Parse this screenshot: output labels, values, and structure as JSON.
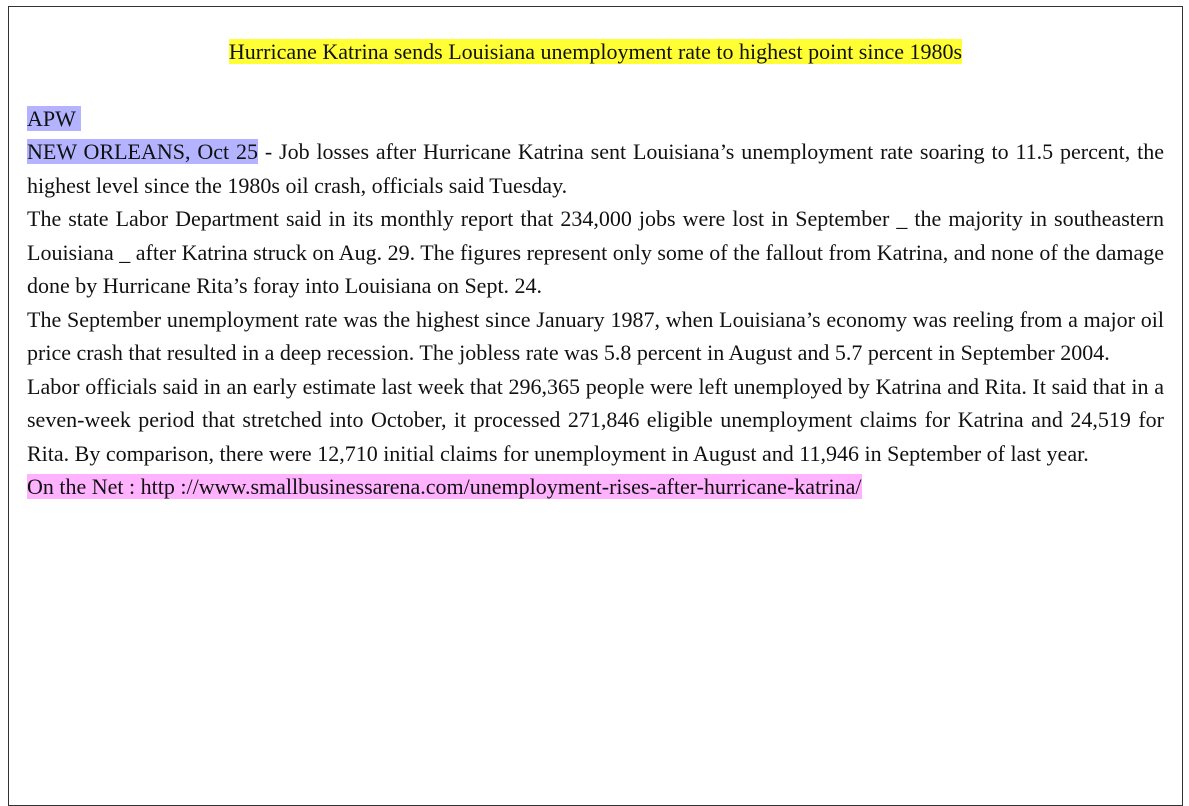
{
  "title": "Hurricane Katrina sends Louisiana unemployment rate to highest point since 1980s",
  "source": "APW",
  "dateline": "NEW ORLEANS, Oct 25",
  "lead": " - Job losses after Hurricane Katrina sent Louisiana’s unemployment rate soaring to 11.5 percent, the highest level since the 1980s oil crash, officials said Tuesday.",
  "paragraphs": [
    "The state Labor Department said in its monthly report that 234,000 jobs were lost in September _ the majority in southeastern Louisiana _ after Katrina struck on Aug. 29. The figures represent only some of the fallout from Katrina, and none of the damage done by Hurricane Rita’s foray into Louisiana on Sept. 24.",
    "The September unemployment rate was the highest since January 1987, when Louisiana’s economy was reeling from a major oil price crash that resulted in a deep recession. The jobless rate was 5.8 percent in August and 5.7 percent in September 2004.",
    "Labor officials said in an early estimate last week that 296,365 people were left unemployed by Katrina and Rita. It said that in a seven-week period that stretched into October, it processed 271,846 eligible unemployment claims for Katrina and 24,519 for Rita. By comparison, there were 12,710 initial claims for unemployment in August and 11,946 in September of last year."
  ],
  "net": {
    "label": "On the Net :",
    "url": "http ://www.smallbusinessarena.com/unemployment-rises-after-hurricane-katrina/"
  }
}
